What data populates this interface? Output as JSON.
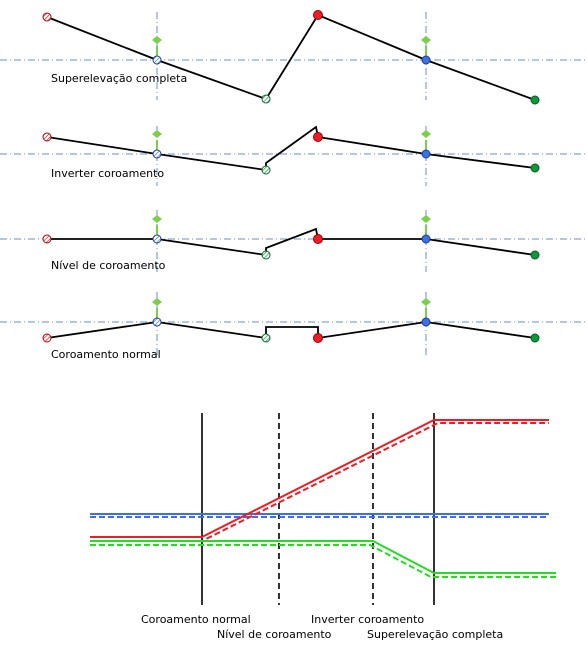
{
  "sections": [
    {
      "label": "Superelevação completa"
    },
    {
      "label": "Inverter coroamento"
    },
    {
      "label": "Nível de coroamento"
    },
    {
      "label": "Coroamento normal"
    }
  ],
  "profile": {
    "labels_row1": [
      {
        "text": "Coroamento normal"
      },
      {
        "text": "Inverter coroamento"
      }
    ],
    "labels_row2": [
      {
        "text": "Nível de coroamento"
      },
      {
        "text": "Superelevação completa"
      }
    ]
  },
  "colors": {
    "red": "#ee1c24",
    "blue": "#3f6fe0",
    "green": "#22dd22",
    "dark_green": "#0a9a3a",
    "axis": "#6a8fc8",
    "marker_green": "#7ad04a"
  }
}
